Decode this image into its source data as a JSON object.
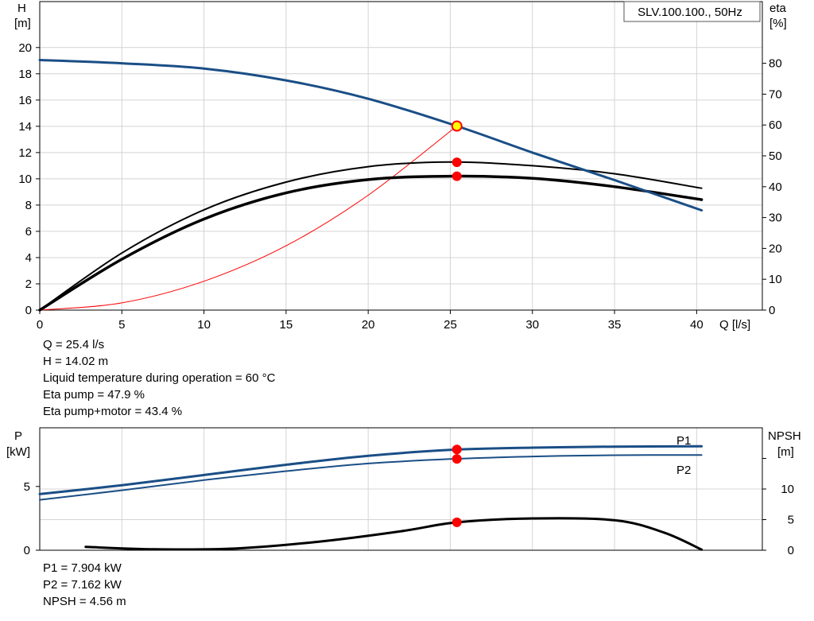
{
  "chart_data": [
    {
      "type": "line",
      "title": "SLV.100.100., 50Hz",
      "xlabel": "Q [l/s]",
      "ylabel_left": [
        "H",
        "[m]"
      ],
      "ylabel_right": [
        "eta",
        "[%]"
      ],
      "xlim": [
        0,
        44
      ],
      "ylim_left": [
        0,
        23.5
      ],
      "ylim_right": [
        0,
        100
      ],
      "xticks": [
        "0",
        "5",
        "10",
        "15",
        "20",
        "25",
        "30",
        "35",
        "40"
      ],
      "yticks_left": [
        "0",
        "2",
        "4",
        "6",
        "8",
        "10",
        "12",
        "14",
        "16",
        "18",
        "20"
      ],
      "yticks_right": [
        "0",
        "10",
        "20",
        "30",
        "40",
        "50",
        "60",
        "70",
        "80"
      ],
      "grid": true,
      "series": [
        {
          "axis": "left",
          "color": "#1a4e86",
          "width": 3,
          "x": [
            0,
            5,
            10,
            15,
            20,
            25.4,
            30,
            35,
            40.3
          ],
          "y": [
            19.05,
            18.8,
            18.4,
            17.5,
            16.1,
            14.02,
            12.0,
            9.9,
            7.6
          ]
        },
        {
          "axis": "right",
          "color": "#000000",
          "width": 2,
          "x": [
            0,
            5,
            10,
            15,
            20,
            25,
            30,
            35,
            40.3
          ],
          "y": [
            0,
            18.5,
            32.5,
            41.5,
            46.5,
            48.0,
            46.8,
            44.2,
            39.5
          ]
        },
        {
          "axis": "right",
          "color": "#000000",
          "width": 3.5,
          "x": [
            0,
            5,
            10,
            15,
            20,
            25,
            30,
            35,
            40.3
          ],
          "y": [
            0,
            16.5,
            29.5,
            38.0,
            42.3,
            43.4,
            42.7,
            40.0,
            35.8
          ]
        },
        {
          "axis": "left",
          "color": "#ff0000",
          "width": 1,
          "x": [
            0,
            5,
            10,
            15,
            20,
            25.4
          ],
          "y": [
            0,
            0.55,
            2.2,
            4.9,
            8.75,
            14.02
          ]
        }
      ],
      "operating_points": [
        {
          "axis": "left",
          "x": 25.4,
          "y": 14.02,
          "fill": "#ffff00",
          "stroke": "#ff0000"
        },
        {
          "axis": "right",
          "x": 25.4,
          "y": 47.9,
          "fill": "#ff0000",
          "stroke": "#ff0000"
        },
        {
          "axis": "right",
          "x": 25.4,
          "y": 43.4,
          "fill": "#ff0000",
          "stroke": "#ff0000"
        }
      ],
      "info": [
        "Q = 25.4 l/s",
        "H = 14.02 m",
        "Liquid temperature during operation = 60 °C",
        "Eta pump = 47.9 %",
        "Eta pump+motor = 43.4 %"
      ]
    },
    {
      "type": "line",
      "title": "",
      "xlabel": "",
      "ylabel_left": [
        "P",
        "[kW]"
      ],
      "ylabel_right": [
        "NPSH",
        "[m]"
      ],
      "xlim": [
        0,
        44
      ],
      "ylim_left": [
        0,
        9.6
      ],
      "ylim_right": [
        0,
        20
      ],
      "yticks_left": [
        "0",
        "5"
      ],
      "yticks_right": [
        "0",
        "5",
        "10"
      ],
      "grid": true,
      "series": [
        {
          "name": "P1",
          "axis": "left",
          "color": "#1a4e86",
          "width": 3,
          "x": [
            0,
            5,
            10,
            15,
            20,
            25,
            30,
            35,
            40.3
          ],
          "y": [
            4.4,
            5.1,
            5.9,
            6.7,
            7.4,
            7.87,
            8.04,
            8.12,
            8.15
          ]
        },
        {
          "name": "P2",
          "axis": "left",
          "color": "#1a4e86",
          "width": 2,
          "x": [
            0,
            5,
            10,
            15,
            20,
            25,
            30,
            35,
            40.3
          ],
          "y": [
            3.95,
            4.7,
            5.5,
            6.2,
            6.8,
            7.15,
            7.35,
            7.45,
            7.47
          ]
        },
        {
          "axis": "right",
          "color": "#000000",
          "width": 3,
          "x": [
            2.8,
            7,
            12,
            17,
            22,
            25.4,
            30,
            35,
            38,
            40.3
          ],
          "y": [
            0.55,
            0.15,
            0.3,
            1.4,
            3.1,
            4.56,
            5.2,
            4.9,
            2.9,
            0.1
          ]
        }
      ],
      "operating_points": [
        {
          "axis": "left",
          "x": 25.4,
          "y": 7.904,
          "fill": "#ff0000",
          "stroke": "#ff0000"
        },
        {
          "axis": "left",
          "x": 25.4,
          "y": 7.162,
          "fill": "#ff0000",
          "stroke": "#ff0000"
        },
        {
          "axis": "right",
          "x": 25.4,
          "y": 4.56,
          "fill": "#ff0000",
          "stroke": "#ff0000"
        }
      ],
      "info": [
        "P1 = 7.904 kW",
        "P2 = 7.162 kW",
        "NPSH = 4.56 m"
      ]
    }
  ]
}
